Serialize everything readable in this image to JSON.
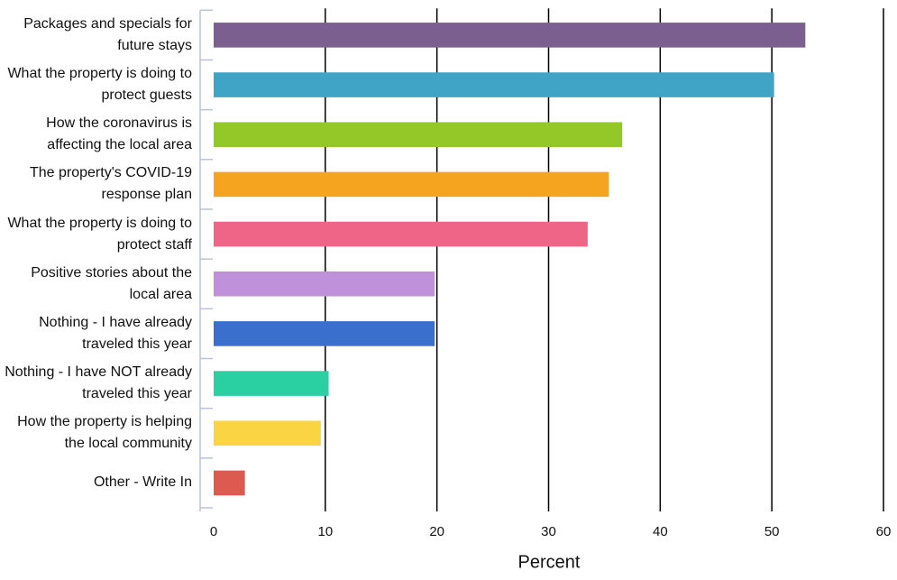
{
  "chart_data": {
    "type": "barh",
    "categories": [
      "Packages and specials for future stays",
      "What the property is doing to protect guests",
      "How the coronavirus is affecting the local area",
      "The property's COVID-19 response plan",
      "What the property is doing to protect staff",
      "Positive stories about the local area",
      "Nothing - I have already traveled this year",
      "Nothing - I have NOT already traveled this year",
      "How the property is helping the local community",
      "Other - Write In"
    ],
    "values": [
      53.0,
      50.2,
      36.6,
      35.4,
      33.5,
      19.8,
      19.8,
      10.3,
      9.6,
      2.8
    ],
    "colors": [
      "#7b5f8f",
      "#40a4c6",
      "#94c829",
      "#f5a41f",
      "#ef6587",
      "#bf91db",
      "#3b6fce",
      "#2ad0a2",
      "#fbd444",
      "#dc5a50"
    ],
    "xlabel": "Percent",
    "xlim": [
      0,
      60
    ],
    "xticks": [
      0,
      10,
      20,
      30,
      40,
      50,
      60
    ],
    "grid": true
  }
}
